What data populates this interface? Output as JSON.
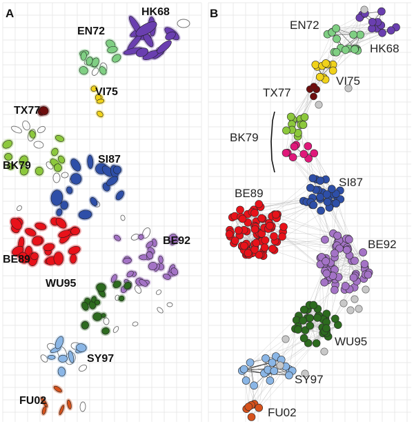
{
  "panels": {
    "a": {
      "letter": "A"
    },
    "b": {
      "letter": "B"
    }
  },
  "clusters": [
    {
      "id": "hk68",
      "label": "HK68",
      "color": "#6a3fb0"
    },
    {
      "id": "en72",
      "label": "EN72",
      "color": "#7fcf83"
    },
    {
      "id": "vi75",
      "label": "VI75",
      "color": "#f0d21a"
    },
    {
      "id": "tx77",
      "label": "TX77",
      "color": "#6e0d0d"
    },
    {
      "id": "bk79",
      "label": "BK79",
      "color": "#8cc83c"
    },
    {
      "id": "bk79b",
      "label": "",
      "color": "#e0187a"
    },
    {
      "id": "si87",
      "label": "SI87",
      "color": "#2e4fa8"
    },
    {
      "id": "be89",
      "label": "BE89",
      "color": "#e8121a"
    },
    {
      "id": "be92",
      "label": "BE92",
      "color": "#a473c6"
    },
    {
      "id": "wu95",
      "label": "WU95",
      "color": "#2c6b1e"
    },
    {
      "id": "sy97",
      "label": "SY97",
      "color": "#8ab6e6"
    },
    {
      "id": "fu02",
      "label": "FU02",
      "color": "#d6521c"
    }
  ],
  "colors": {
    "grid": "#e2e2e2",
    "edge": "#b8b8b8",
    "unassigned": "#c8c8c8",
    "outline": "#6a6a6a"
  }
}
